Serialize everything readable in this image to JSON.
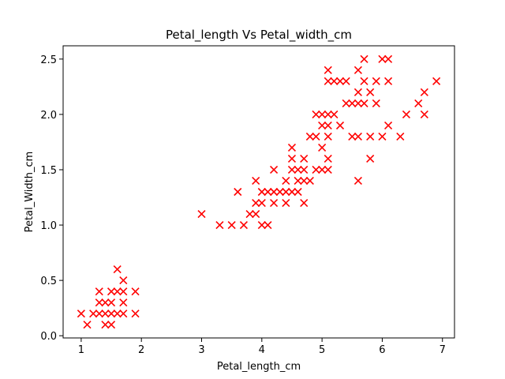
{
  "chart_data": {
    "type": "scatter",
    "title": "Petal_length Vs Petal_width_cm",
    "xlabel": "Petal_length_cm",
    "ylabel": "Petal_Width_cm",
    "xlim": [
      0.7,
      7.2
    ],
    "ylim": [
      -0.02,
      2.62
    ],
    "xticks": [
      1,
      2,
      3,
      4,
      5,
      6,
      7
    ],
    "xtick_labels": [
      "1",
      "2",
      "3",
      "4",
      "5",
      "6",
      "7"
    ],
    "yticks": [
      0.0,
      0.5,
      1.0,
      1.5,
      2.0,
      2.5
    ],
    "ytick_labels": [
      "0.0",
      "0.5",
      "1.0",
      "1.5",
      "2.0",
      "2.5"
    ],
    "grid": false,
    "marker": "x",
    "color": "#ff0000",
    "series": [
      {
        "points": [
          [
            1.0,
            0.2
          ],
          [
            1.1,
            0.1
          ],
          [
            1.2,
            0.2
          ],
          [
            1.3,
            0.2
          ],
          [
            1.3,
            0.3
          ],
          [
            1.3,
            0.4
          ],
          [
            1.4,
            0.1
          ],
          [
            1.4,
            0.2
          ],
          [
            1.4,
            0.3
          ],
          [
            1.5,
            0.1
          ],
          [
            1.5,
            0.2
          ],
          [
            1.5,
            0.3
          ],
          [
            1.5,
            0.4
          ],
          [
            1.6,
            0.2
          ],
          [
            1.6,
            0.4
          ],
          [
            1.6,
            0.6
          ],
          [
            1.7,
            0.2
          ],
          [
            1.7,
            0.3
          ],
          [
            1.7,
            0.4
          ],
          [
            1.7,
            0.5
          ],
          [
            1.9,
            0.2
          ],
          [
            1.9,
            0.4
          ],
          [
            3.0,
            1.1
          ],
          [
            3.3,
            1.0
          ],
          [
            3.5,
            1.0
          ],
          [
            3.6,
            1.3
          ],
          [
            3.7,
            1.0
          ],
          [
            3.8,
            1.1
          ],
          [
            3.9,
            1.1
          ],
          [
            3.9,
            1.2
          ],
          [
            3.9,
            1.4
          ],
          [
            4.0,
            1.0
          ],
          [
            4.0,
            1.2
          ],
          [
            4.0,
            1.3
          ],
          [
            4.1,
            1.0
          ],
          [
            4.1,
            1.3
          ],
          [
            4.2,
            1.2
          ],
          [
            4.2,
            1.3
          ],
          [
            4.2,
            1.5
          ],
          [
            4.3,
            1.3
          ],
          [
            4.4,
            1.2
          ],
          [
            4.4,
            1.3
          ],
          [
            4.4,
            1.4
          ],
          [
            4.5,
            1.3
          ],
          [
            4.5,
            1.5
          ],
          [
            4.5,
            1.6
          ],
          [
            4.5,
            1.7
          ],
          [
            4.6,
            1.3
          ],
          [
            4.6,
            1.4
          ],
          [
            4.6,
            1.5
          ],
          [
            4.7,
            1.2
          ],
          [
            4.7,
            1.4
          ],
          [
            4.7,
            1.5
          ],
          [
            4.7,
            1.6
          ],
          [
            4.8,
            1.4
          ],
          [
            4.8,
            1.8
          ],
          [
            4.9,
            1.5
          ],
          [
            4.9,
            1.8
          ],
          [
            4.9,
            2.0
          ],
          [
            5.0,
            1.5
          ],
          [
            5.0,
            1.7
          ],
          [
            5.0,
            1.9
          ],
          [
            5.0,
            2.0
          ],
          [
            5.1,
            1.5
          ],
          [
            5.1,
            1.6
          ],
          [
            5.1,
            1.8
          ],
          [
            5.1,
            1.9
          ],
          [
            5.1,
            2.0
          ],
          [
            5.1,
            2.3
          ],
          [
            5.1,
            2.4
          ],
          [
            5.2,
            2.0
          ],
          [
            5.2,
            2.3
          ],
          [
            5.3,
            1.9
          ],
          [
            5.3,
            2.3
          ],
          [
            5.4,
            2.1
          ],
          [
            5.4,
            2.3
          ],
          [
            5.5,
            1.8
          ],
          [
            5.5,
            2.1
          ],
          [
            5.6,
            1.4
          ],
          [
            5.6,
            1.8
          ],
          [
            5.6,
            2.1
          ],
          [
            5.6,
            2.2
          ],
          [
            5.6,
            2.4
          ],
          [
            5.7,
            2.1
          ],
          [
            5.7,
            2.3
          ],
          [
            5.7,
            2.5
          ],
          [
            5.8,
            1.6
          ],
          [
            5.8,
            1.8
          ],
          [
            5.8,
            2.2
          ],
          [
            5.9,
            2.1
          ],
          [
            5.9,
            2.3
          ],
          [
            6.0,
            1.8
          ],
          [
            6.0,
            2.5
          ],
          [
            6.1,
            1.9
          ],
          [
            6.1,
            2.3
          ],
          [
            6.1,
            2.5
          ],
          [
            6.3,
            1.8
          ],
          [
            6.4,
            2.0
          ],
          [
            6.6,
            2.1
          ],
          [
            6.7,
            2.0
          ],
          [
            6.7,
            2.2
          ],
          [
            6.9,
            2.3
          ]
        ]
      }
    ]
  }
}
